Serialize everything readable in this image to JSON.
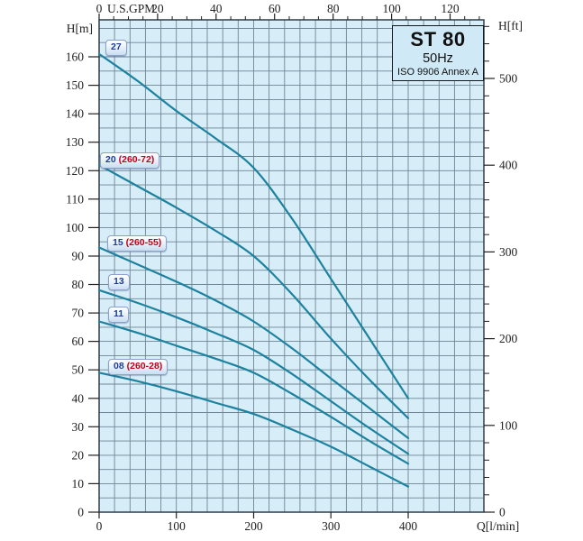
{
  "title_box": {
    "model": "ST 80",
    "frequency": "50Hz",
    "standard": "ISO 9906 Annex A"
  },
  "axes": {
    "left": {
      "unit": "H[m]",
      "ticks": [
        0,
        10,
        20,
        30,
        40,
        50,
        60,
        70,
        80,
        90,
        100,
        110,
        120,
        130,
        140,
        150,
        160
      ]
    },
    "right": {
      "unit": "H[ft]",
      "ticks": [
        0,
        100,
        200,
        300,
        400,
        500
      ],
      "minor_step_ft": 20
    },
    "top": {
      "unit": "U.S.GPM",
      "ticks": [
        0,
        20,
        40,
        60,
        80,
        100,
        120
      ],
      "minor_step_gpm": 5
    },
    "bottom": {
      "unit": "Q[l/min]",
      "ticks": [
        0,
        100,
        200,
        300,
        400
      ]
    }
  },
  "colors": {
    "plot_background": "#d7edf8",
    "grid_line": "#6e8595",
    "plot_border": "#2f3e4a",
    "curve": "#1d82a0",
    "axis_text": "#222222",
    "label_number_blue": "#1d3e95",
    "label_suffix_red": "#c00018"
  },
  "chart_data": {
    "type": "line",
    "title": "ST 80 50Hz pump performance curves (ISO 9906 Annex A)",
    "xlabel": "Q[l/min]",
    "ylabel": "H[m]",
    "y2label": "H[ft]",
    "x2label": "U.S.GPM",
    "xlim_lmin": [
      0,
      498
    ],
    "ylim_m": [
      0,
      173
    ],
    "grid": {
      "on": true,
      "x_step_lmin": 20,
      "y_step_m": 5
    },
    "gpm_to_lmin": 3.78541,
    "ft_to_m": 0.3048,
    "series": [
      {
        "name": "27 stages",
        "label": "27",
        "label_suffix": "",
        "label_pos": [
          117,
          44
        ],
        "points": [
          [
            0,
            161
          ],
          [
            50,
            151.5
          ],
          [
            100,
            141
          ],
          [
            150,
            131.5
          ],
          [
            200,
            121
          ],
          [
            250,
            103
          ],
          [
            300,
            82
          ],
          [
            350,
            61
          ],
          [
            400,
            40
          ]
        ]
      },
      {
        "name": "20 stages (260-72)",
        "label": "20",
        "label_suffix": " (260-72)",
        "label_pos": [
          111,
          169
        ],
        "points": [
          [
            0,
            122
          ],
          [
            50,
            114.5
          ],
          [
            100,
            107
          ],
          [
            150,
            99
          ],
          [
            200,
            90
          ],
          [
            250,
            76.5
          ],
          [
            300,
            61
          ],
          [
            350,
            46.5
          ],
          [
            400,
            33
          ]
        ]
      },
      {
        "name": "15 stages (260-55)",
        "label": "15",
        "label_suffix": " (260-55)",
        "label_pos": [
          119,
          261
        ],
        "points": [
          [
            0,
            93
          ],
          [
            50,
            87
          ],
          [
            100,
            81
          ],
          [
            150,
            74.5
          ],
          [
            200,
            67
          ],
          [
            250,
            57.5
          ],
          [
            300,
            47
          ],
          [
            350,
            36.5
          ],
          [
            400,
            26
          ]
        ]
      },
      {
        "name": "13 stages",
        "label": "13",
        "label_suffix": "",
        "label_pos": [
          120,
          304
        ],
        "points": [
          [
            0,
            78
          ],
          [
            50,
            73.5
          ],
          [
            100,
            68.5
          ],
          [
            150,
            63
          ],
          [
            200,
            57
          ],
          [
            250,
            48.5
          ],
          [
            300,
            39
          ],
          [
            350,
            29.5
          ],
          [
            400,
            20.5
          ]
        ]
      },
      {
        "name": "11 stages",
        "label": "11",
        "label_suffix": "",
        "label_pos": [
          120,
          340
        ],
        "points": [
          [
            0,
            67
          ],
          [
            50,
            63
          ],
          [
            100,
            58.5
          ],
          [
            150,
            54
          ],
          [
            200,
            49
          ],
          [
            250,
            41.5
          ],
          [
            300,
            33.5
          ],
          [
            350,
            25
          ],
          [
            400,
            17
          ]
        ]
      },
      {
        "name": "08 stages (260-28)",
        "label": "08",
        "label_suffix": " (260-28)",
        "label_pos": [
          120,
          398
        ],
        "points": [
          [
            0,
            49
          ],
          [
            50,
            46
          ],
          [
            100,
            42.5
          ],
          [
            150,
            38.5
          ],
          [
            200,
            34.5
          ],
          [
            250,
            29
          ],
          [
            300,
            23
          ],
          [
            350,
            16
          ],
          [
            400,
            9
          ]
        ]
      }
    ]
  }
}
